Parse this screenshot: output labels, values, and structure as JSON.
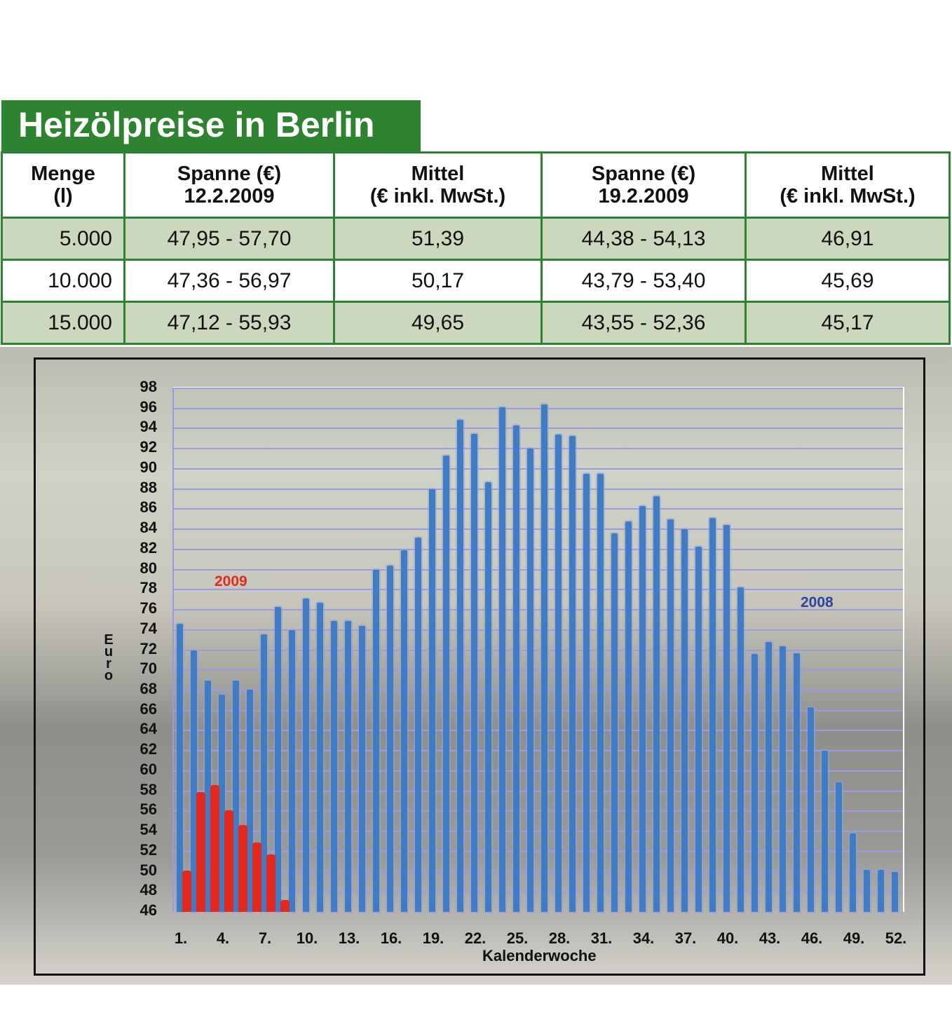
{
  "header": {
    "title": "Heizölpreise in Berlin"
  },
  "table": {
    "columns": [
      [
        "Menge",
        "(l)"
      ],
      [
        "Spanne (€)",
        "12.2.2009"
      ],
      [
        "Mittel",
        "(€ inkl. MwSt.)"
      ],
      [
        "Spanne (€)",
        "19.2.2009"
      ],
      [
        "Mittel",
        "(€ inkl. MwSt.)"
      ]
    ],
    "rows": [
      [
        "5.000",
        "47,95 - 57,70",
        "51,39",
        "44,38 - 54,13",
        "46,91"
      ],
      [
        "10.000",
        "47,36 - 56,97",
        "50,17",
        "43,79 - 53,40",
        "45,69"
      ],
      [
        "15.000",
        "47,12 - 55,93",
        "49,65",
        "43,55 - 52,36",
        "45,17"
      ]
    ]
  },
  "colors": {
    "header_green": "#2e8331",
    "row_shade": "#cbd8bd",
    "series_2008": "#3f7cc4",
    "series_2009": "#e3291d",
    "grid": "#9b9be0"
  },
  "chart_data": {
    "type": "bar",
    "title": "",
    "xlabel": "Kalenderwoche",
    "ylabel": "Euro",
    "ylim": [
      46,
      98
    ],
    "yticks": [
      46,
      48,
      50,
      52,
      54,
      56,
      58,
      60,
      62,
      64,
      66,
      68,
      70,
      72,
      74,
      76,
      78,
      80,
      82,
      84,
      86,
      88,
      90,
      92,
      94,
      96,
      98
    ],
    "xtick_labels": [
      "1.",
      "4.",
      "7.",
      "10.",
      "13.",
      "16.",
      "19.",
      "22.",
      "25.",
      "28.",
      "31.",
      "34.",
      "37.",
      "40.",
      "43.",
      "46.",
      "49.",
      "52."
    ],
    "grid": true,
    "annotations": [
      {
        "text": "2009",
        "color": "#e3291d"
      },
      {
        "text": "2008",
        "color": "#2b45a0"
      }
    ],
    "x": [
      1,
      2,
      3,
      4,
      5,
      6,
      7,
      8,
      9,
      10,
      11,
      12,
      13,
      14,
      15,
      16,
      17,
      18,
      19,
      20,
      21,
      22,
      23,
      24,
      25,
      26,
      27,
      28,
      29,
      30,
      31,
      32,
      33,
      34,
      35,
      36,
      37,
      38,
      39,
      40,
      41,
      42,
      43,
      44,
      45,
      46,
      47,
      48,
      49,
      50,
      51,
      52
    ],
    "series": [
      {
        "name": "2008",
        "values": [
          74.6,
          72.0,
          69.0,
          67.6,
          69.0,
          68.1,
          73.6,
          76.3,
          74.0,
          77.1,
          76.7,
          74.9,
          74.9,
          74.4,
          80.0,
          80.4,
          81.9,
          83.2,
          88.0,
          91.3,
          94.9,
          93.5,
          88.7,
          96.1,
          94.3,
          92.0,
          96.4,
          93.4,
          93.3,
          89.5,
          89.5,
          83.6,
          84.8,
          86.3,
          87.3,
          85.0,
          84.0,
          82.3,
          85.1,
          84.4,
          78.2,
          71.6,
          72.8,
          72.4,
          71.7,
          66.3,
          62.0,
          58.9,
          53.8,
          50.2,
          50.2,
          50.0
        ]
      },
      {
        "name": "2009",
        "values": [
          50.1,
          57.9,
          58.6,
          56.1,
          54.6,
          52.9,
          51.7,
          47.2
        ]
      }
    ]
  }
}
